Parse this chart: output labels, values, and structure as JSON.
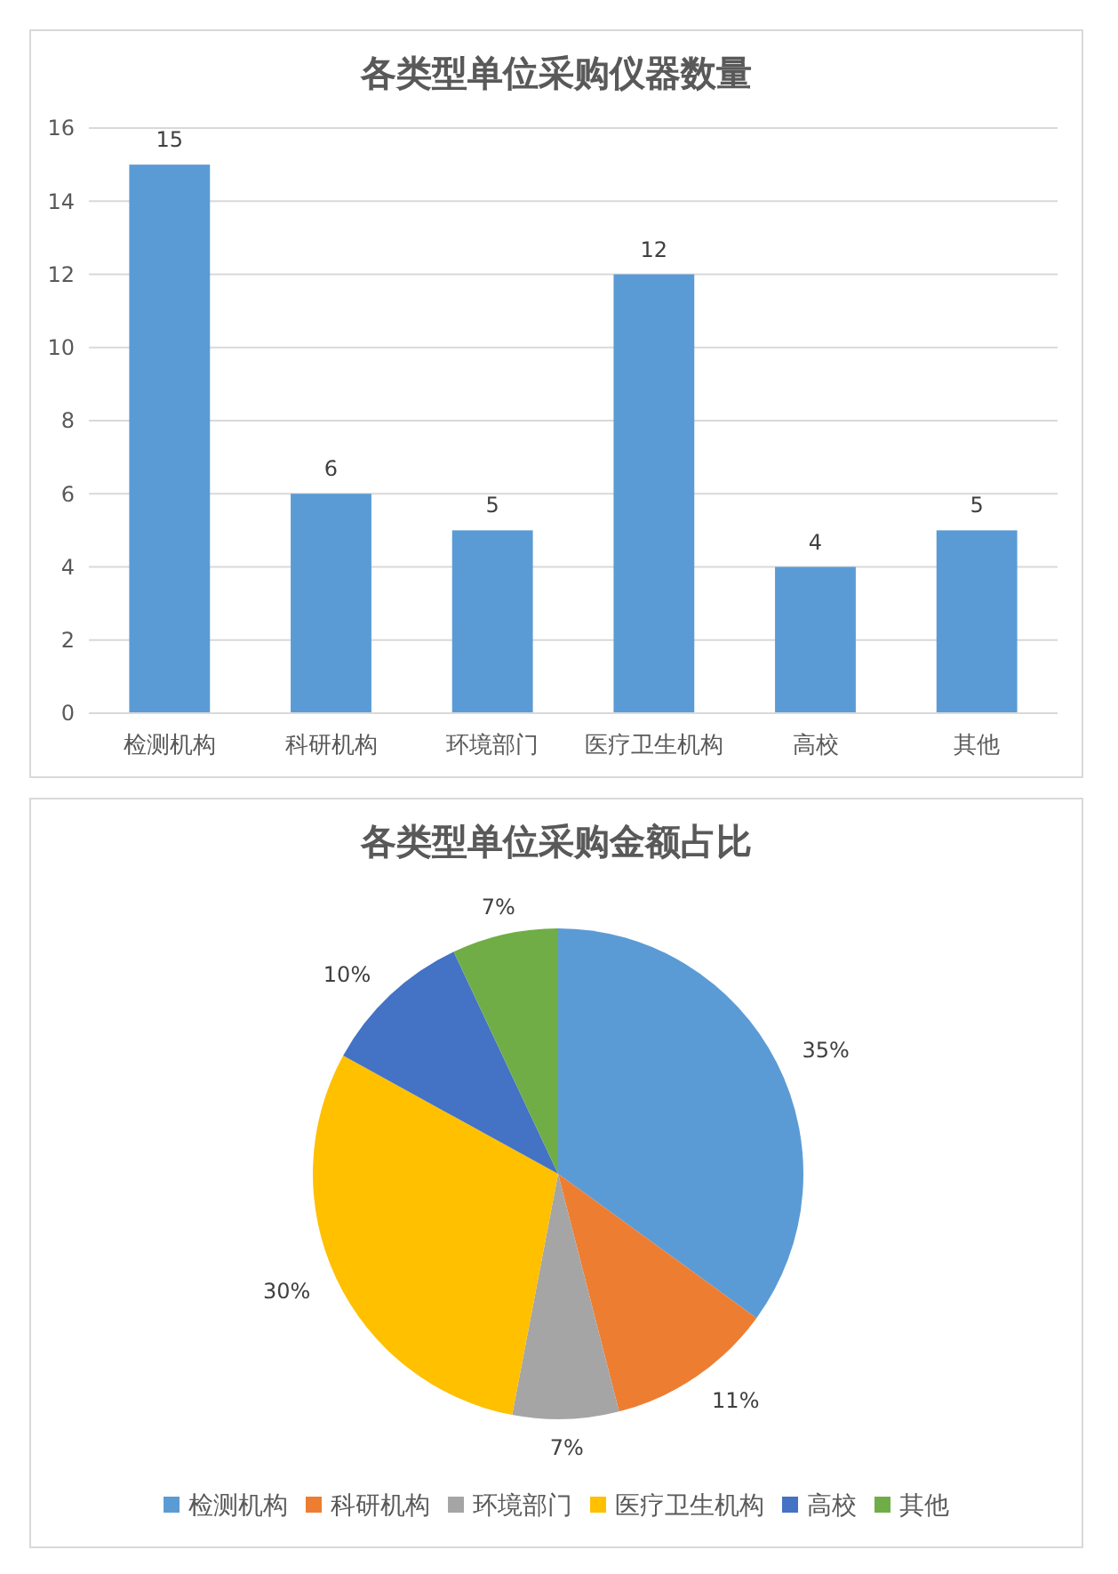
{
  "chart_data": [
    {
      "type": "bar",
      "title": "各类型单位采购仪器数量",
      "categories": [
        "检测机构",
        "科研机构",
        "环境部门",
        "医疗卫生机构",
        "高校",
        "其他"
      ],
      "values": [
        15,
        6,
        5,
        12,
        4,
        5
      ],
      "color": "#5b9bd5",
      "ylim": [
        0,
        16
      ],
      "yticks": [
        0,
        2,
        4,
        6,
        8,
        10,
        12,
        14,
        16
      ],
      "grid": "y",
      "data_labels": true
    },
    {
      "type": "pie",
      "title": "各类型单位采购金额占比",
      "categories": [
        "检测机构",
        "科研机构",
        "环境部门",
        "医疗卫生机构",
        "高校",
        "其他"
      ],
      "values": [
        35,
        11,
        7,
        30,
        10,
        7
      ],
      "colors": [
        "#5b9bd5",
        "#ed7d31",
        "#a5a5a5",
        "#ffc000",
        "#4472c4",
        "#70ad47"
      ],
      "value_labels": [
        "35%",
        "11%",
        "7%",
        "30%",
        "10%",
        "7%"
      ],
      "legend": "bottom"
    }
  ]
}
